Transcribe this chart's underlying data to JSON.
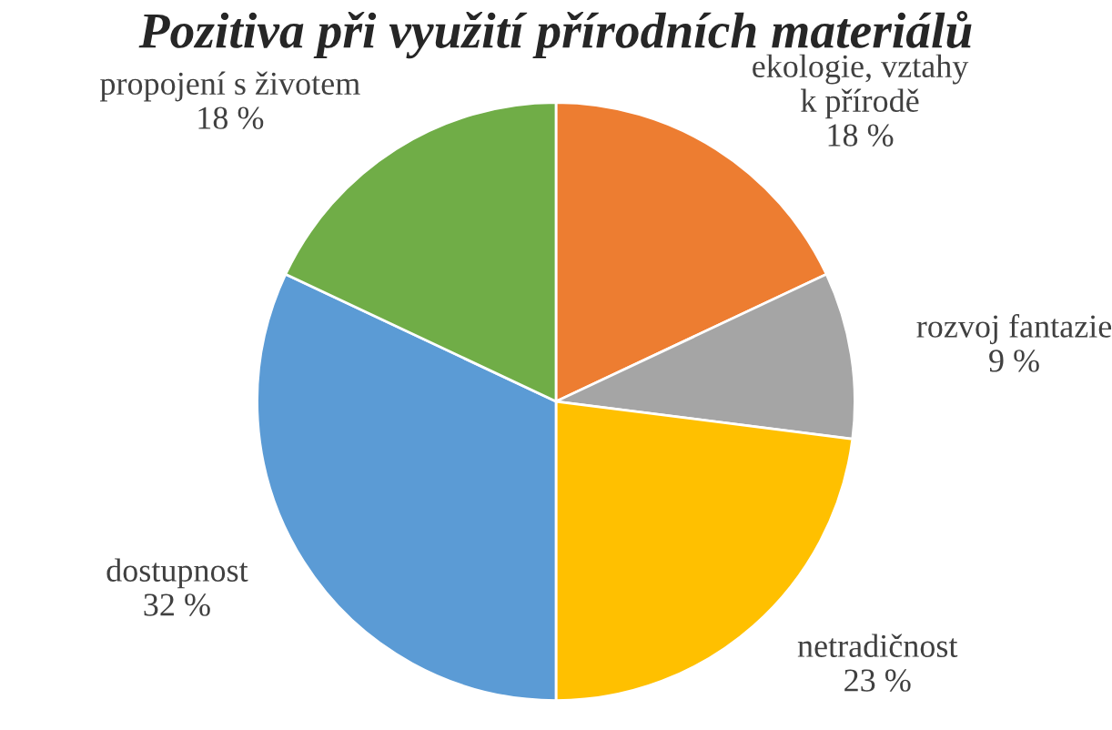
{
  "chart_data": {
    "type": "pie",
    "title": "Pozitiva při využití přírodních materiálů",
    "categories": [
      "ekologie, vztahy\nk přírodě",
      "rozvoj fantazie",
      "netradičnost",
      "dostupnost",
      "propojení s životem"
    ],
    "values": [
      18,
      9,
      23,
      32,
      18
    ],
    "colors": [
      "#ed7d31",
      "#a5a5a5",
      "#ffc000",
      "#5b9bd5",
      "#70ad47"
    ],
    "value_labels": [
      "18 %",
      "9 %",
      "23 %",
      "32 %",
      "18 %"
    ],
    "legend": false
  }
}
